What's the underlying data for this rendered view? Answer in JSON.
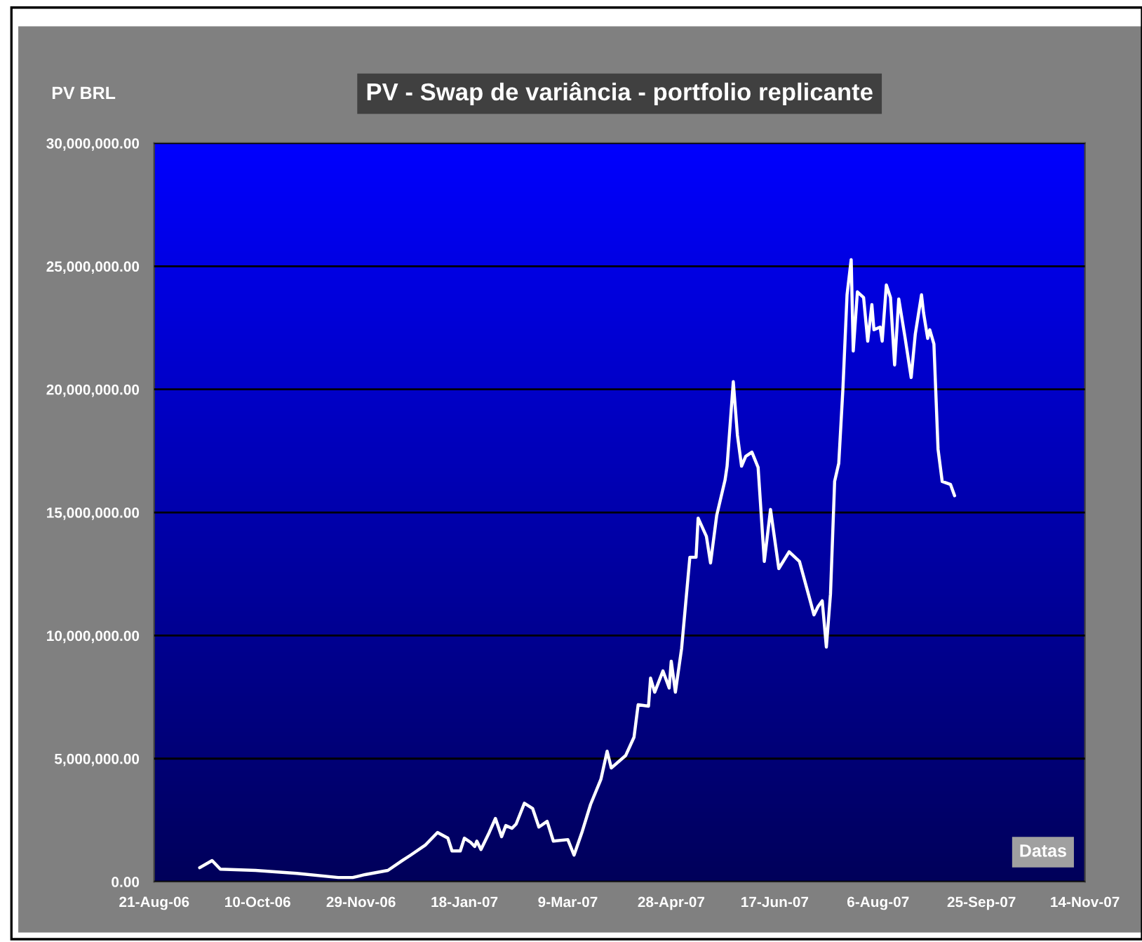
{
  "chart_data": {
    "type": "line",
    "title": "PV - Swap de variância - portfolio replicante",
    "ylabel": "PV BRL",
    "xlabel": "Datas",
    "x": [
      "2006-09-12",
      "2006-09-18",
      "2006-09-22",
      "2006-10-09",
      "2006-10-29",
      "2006-11-18",
      "2006-11-25",
      "2006-12-01",
      "2006-12-12",
      "2006-12-19",
      "2006-12-23",
      "2006-12-30",
      "2007-01-05",
      "2007-01-10",
      "2007-01-12",
      "2007-01-16",
      "2007-01-18",
      "2007-01-21",
      "2007-01-23",
      "2007-01-24",
      "2007-01-26",
      "2007-01-30",
      "2007-02-02",
      "2007-02-05",
      "2007-02-07",
      "2007-02-10",
      "2007-02-12",
      "2007-02-16",
      "2007-02-20",
      "2007-02-23",
      "2007-02-27",
      "2007-03-02",
      "2007-03-09",
      "2007-03-12",
      "2007-03-16",
      "2007-03-20",
      "2007-03-25",
      "2007-03-28",
      "2007-03-30",
      "2007-04-06",
      "2007-04-10",
      "2007-04-12",
      "2007-04-17",
      "2007-04-18",
      "2007-04-20",
      "2007-04-24",
      "2007-04-27",
      "2007-04-28",
      "2007-04-30",
      "2007-05-03",
      "2007-05-07",
      "2007-05-10",
      "2007-05-11",
      "2007-05-15",
      "2007-05-17",
      "2007-05-20",
      "2007-05-24",
      "2007-05-25",
      "2007-05-28",
      "2007-05-30",
      "2007-06-01",
      "2007-06-03",
      "2007-06-06",
      "2007-06-09",
      "2007-06-12",
      "2007-06-15",
      "2007-06-19",
      "2007-06-24",
      "2007-06-29",
      "2007-07-04",
      "2007-07-06",
      "2007-07-08",
      "2007-07-10",
      "2007-07-12",
      "2007-07-14",
      "2007-07-16",
      "2007-07-18",
      "2007-07-20",
      "2007-07-22",
      "2007-07-24",
      "2007-07-25",
      "2007-07-27",
      "2007-07-30",
      "2007-08-01",
      "2007-08-03",
      "2007-08-04",
      "2007-08-07",
      "2007-08-08",
      "2007-08-10",
      "2007-08-12",
      "2007-08-14",
      "2007-08-16",
      "2007-08-19",
      "2007-08-22",
      "2007-08-24",
      "2007-08-27",
      "2007-08-28",
      "2007-08-30",
      "2007-08-31",
      "2007-09-02",
      "2007-09-04",
      "2007-09-06",
      "2007-09-10",
      "2007-09-12"
    ],
    "series": [
      {
        "color": "#ffffff",
        "values": [
          570000,
          860000,
          510000,
          460000,
          340000,
          170000,
          170000,
          290000,
          460000,
          860000,
          1080000,
          1480000,
          2000000,
          1770000,
          1250000,
          1250000,
          1770000,
          1600000,
          1430000,
          1650000,
          1310000,
          2000000,
          2570000,
          1830000,
          2280000,
          2170000,
          2340000,
          3190000,
          2970000,
          2220000,
          2450000,
          1650000,
          1710000,
          1080000,
          2050000,
          3140000,
          4160000,
          5300000,
          4620000,
          5130000,
          5870000,
          7190000,
          7130000,
          8270000,
          7700000,
          8560000,
          7870000,
          8960000,
          7700000,
          9470000,
          13180000,
          13180000,
          14770000,
          14030000,
          12950000,
          14890000,
          16310000,
          16880000,
          20310000,
          18140000,
          16880000,
          17280000,
          17450000,
          16830000,
          13010000,
          15120000,
          12720000,
          13400000,
          13010000,
          11470000,
          10840000,
          11180000,
          11410000,
          9530000,
          11690000,
          16260000,
          17000000,
          20020000,
          23840000,
          25270000,
          21560000,
          23960000,
          23730000,
          21960000,
          23440000,
          22420000,
          22530000,
          21960000,
          24240000,
          23730000,
          20990000,
          23670000,
          22130000,
          20480000,
          22250000,
          23840000,
          23100000,
          22070000,
          22420000,
          21840000,
          17570000,
          16260000,
          16140000,
          15680000
        ]
      }
    ],
    "xlim": [
      "2006-08-21",
      "2007-11-14"
    ],
    "xticks": [
      {
        "value": "2006-08-21",
        "label": "21-Aug-06"
      },
      {
        "value": "2006-10-10",
        "label": "10-Oct-06"
      },
      {
        "value": "2006-11-29",
        "label": "29-Nov-06"
      },
      {
        "value": "2007-01-18",
        "label": "18-Jan-07"
      },
      {
        "value": "2007-03-09",
        "label": "9-Mar-07"
      },
      {
        "value": "2007-04-28",
        "label": "28-Apr-07"
      },
      {
        "value": "2007-06-17",
        "label": "17-Jun-07"
      },
      {
        "value": "2007-08-06",
        "label": "6-Aug-07"
      },
      {
        "value": "2007-09-25",
        "label": "25-Sep-07"
      },
      {
        "value": "2007-11-14",
        "label": "14-Nov-07"
      }
    ],
    "ylim": [
      0,
      30000000
    ],
    "yticks": [
      {
        "value": 0,
        "label": "0.00"
      },
      {
        "value": 5000000,
        "label": "5,000,000.00"
      },
      {
        "value": 10000000,
        "label": "10,000,000.00"
      },
      {
        "value": 15000000,
        "label": "15,000,000.00"
      },
      {
        "value": 20000000,
        "label": "20,000,000.00"
      },
      {
        "value": 25000000,
        "label": "25,000,000.00"
      },
      {
        "value": 30000000,
        "label": "30,000,000.00"
      }
    ],
    "grid": "y",
    "marker": "none",
    "line_style": "solid"
  }
}
